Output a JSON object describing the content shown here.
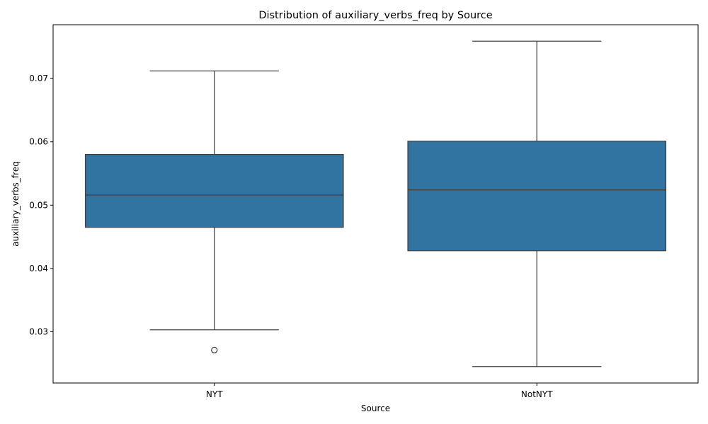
{
  "chart_data": {
    "type": "box",
    "title": "Distribution of auxiliary_verbs_freq by Source",
    "xlabel": "Source",
    "ylabel": "auxiliary_verbs_freq",
    "categories": [
      "NYT",
      "NotNYT"
    ],
    "boxes": [
      {
        "category": "NYT",
        "whisker_low": 0.0303,
        "q1": 0.0465,
        "median": 0.0516,
        "q3": 0.058,
        "whisker_high": 0.0712,
        "outliers": [
          0.0271
        ]
      },
      {
        "category": "NotNYT",
        "whisker_low": 0.0245,
        "q1": 0.0428,
        "median": 0.0524,
        "q3": 0.0601,
        "whisker_high": 0.0759,
        "outliers": []
      }
    ],
    "ylim": [
      0.0219,
      0.0785
    ],
    "yticks": [
      0.03,
      0.04,
      0.05,
      0.06,
      0.07
    ],
    "ytick_labels": [
      "0.03",
      "0.04",
      "0.05",
      "0.06",
      "0.07"
    ],
    "grid": false,
    "colors": {
      "box_fill": "#3274a1",
      "line": "#3f3f3f",
      "frame": "#000000"
    }
  }
}
